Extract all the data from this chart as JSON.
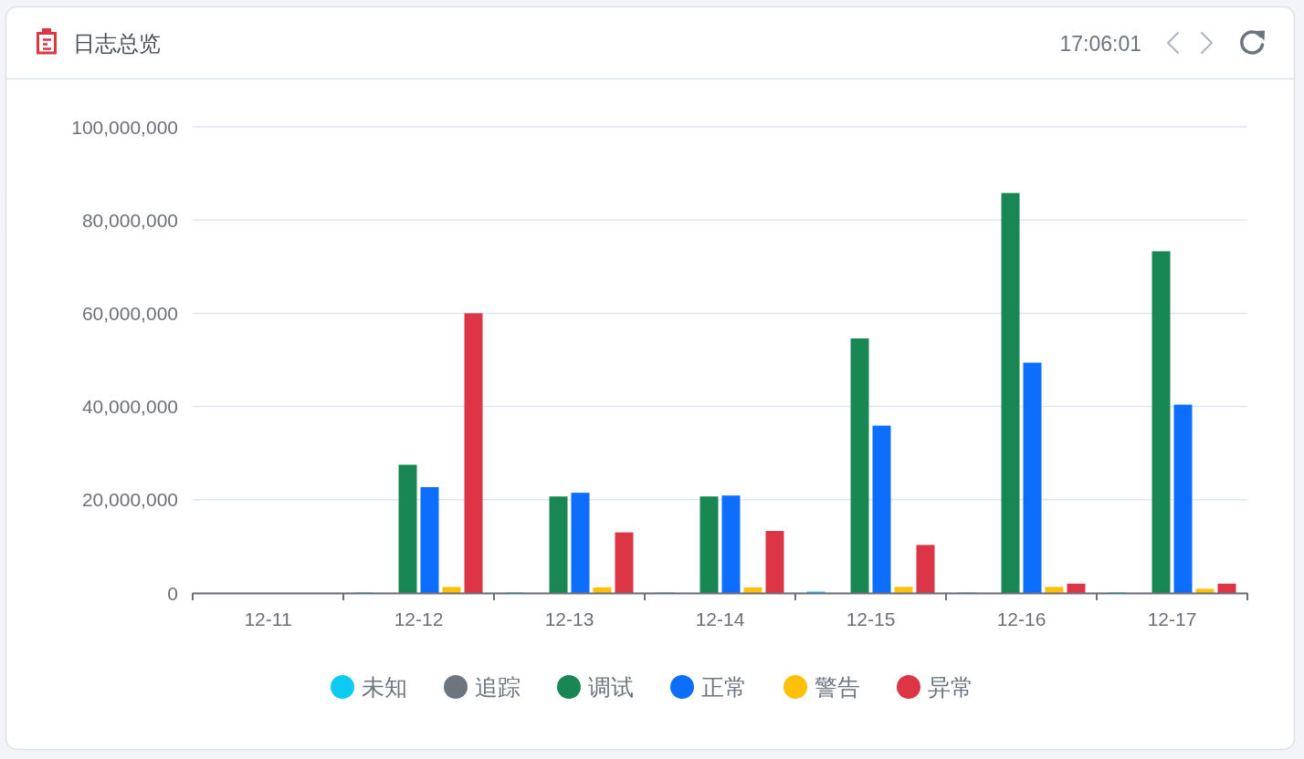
{
  "chart_data": {
    "type": "bar",
    "title": "日志总览",
    "annotations": [
      "17:06:01"
    ],
    "categories": [
      "12-11",
      "12-12",
      "12-13",
      "12-14",
      "12-15",
      "12-16",
      "12-17"
    ],
    "series": [
      {
        "name": "未知",
        "color": "#0dcaf0",
        "values": [
          0,
          100000,
          100000,
          100000,
          300000,
          100000,
          100000
        ]
      },
      {
        "name": "追踪",
        "color": "#6c757d",
        "values": [
          0,
          0,
          0,
          0,
          0,
          0,
          0
        ]
      },
      {
        "name": "调试",
        "color": "#198754",
        "values": [
          0,
          27500000,
          20700000,
          20700000,
          54600000,
          85800000,
          73300000
        ]
      },
      {
        "name": "正常",
        "color": "#0d6efd",
        "values": [
          0,
          22700000,
          21500000,
          20900000,
          35900000,
          49400000,
          40400000
        ]
      },
      {
        "name": "警告",
        "color": "#ffc107",
        "values": [
          0,
          1300000,
          1200000,
          1200000,
          1300000,
          1300000,
          900000
        ]
      },
      {
        "name": "异常",
        "color": "#dc3545",
        "values": [
          0,
          60000000,
          13000000,
          13300000,
          10300000,
          2000000,
          2000000
        ]
      }
    ],
    "ylim": [
      0,
      100000000
    ],
    "yticks": [
      0,
      {
        "value": 20000000,
        "label": "20,000,000"
      },
      {
        "value": 40000000,
        "label": "40,000,000"
      },
      {
        "value": 60000000,
        "label": "60,000,000"
      },
      {
        "value": 80000000,
        "label": "80,000,000"
      },
      {
        "value": 100000000,
        "label": "100,000,000"
      }
    ],
    "grid": "y",
    "legend": "bottom"
  }
}
